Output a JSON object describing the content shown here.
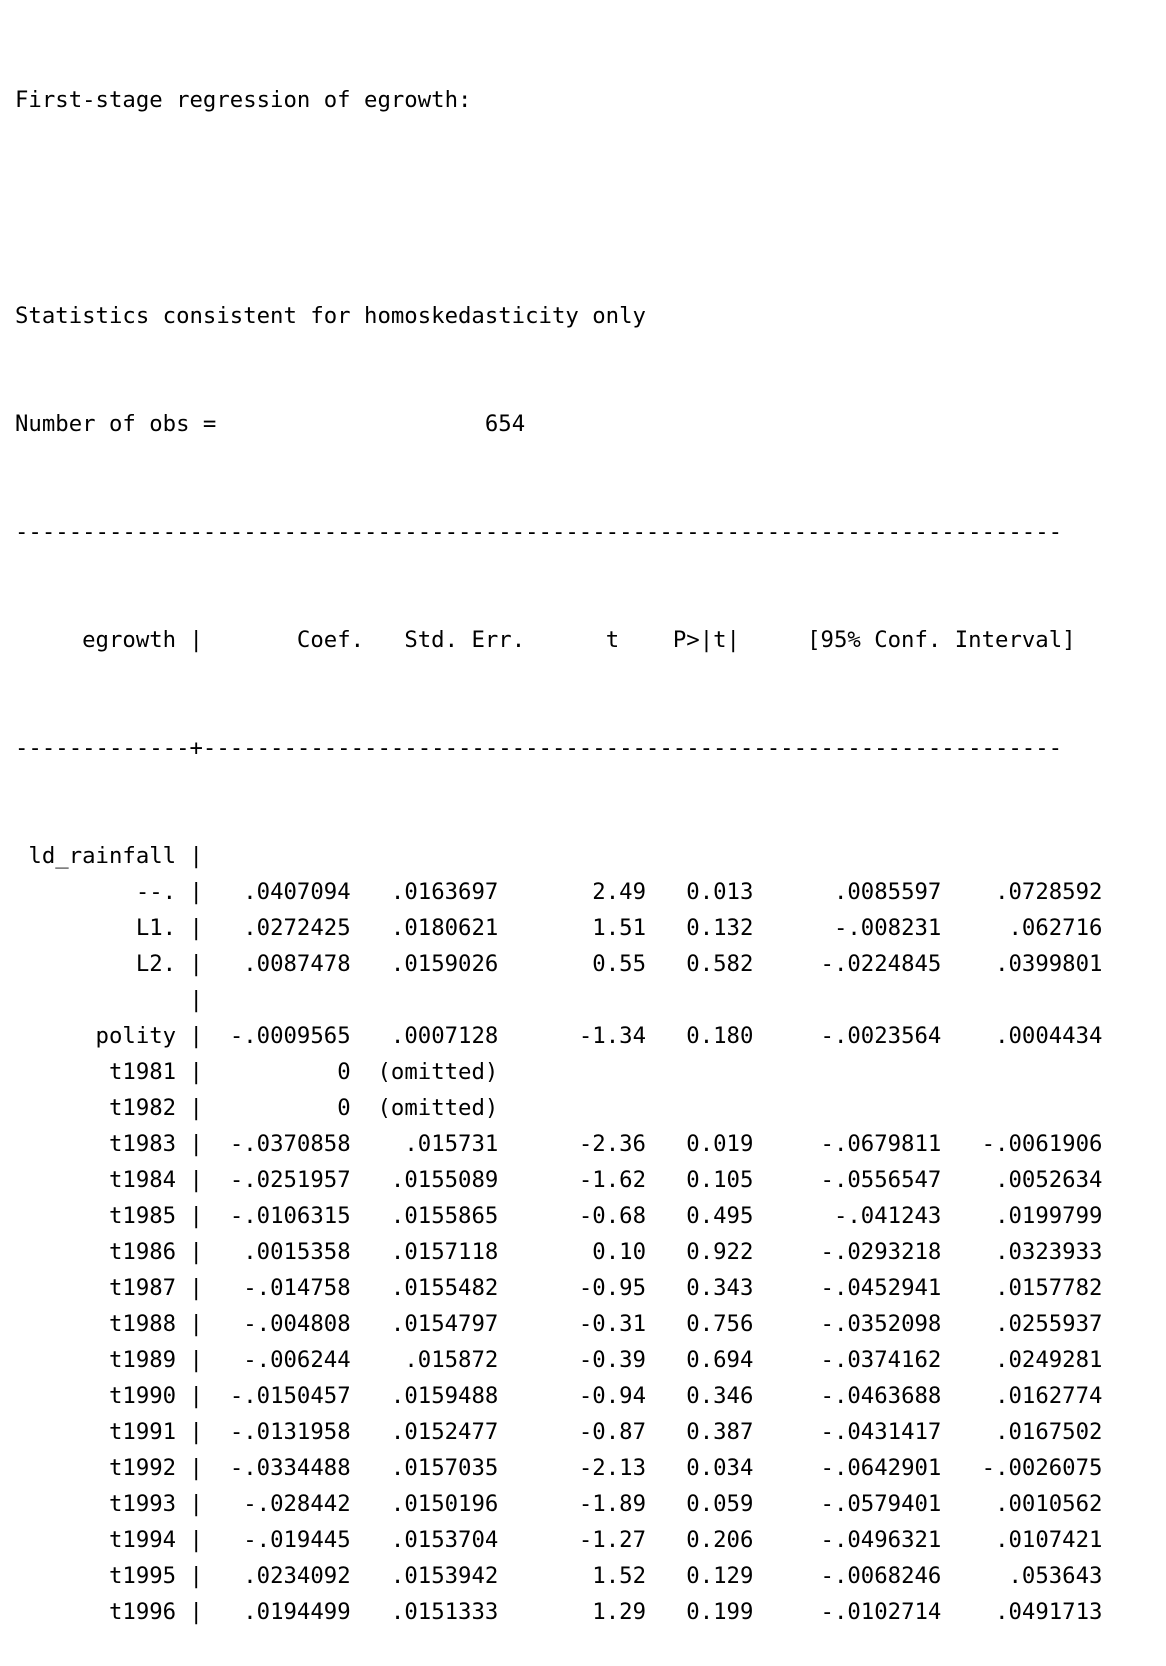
{
  "output": {
    "heading": "First-stage regression of egrowth:",
    "stats_note": "Statistics consistent for homoskedasticity only",
    "nobs_label": "Number of obs =",
    "nobs_value": "654",
    "table": {
      "depvar": "egrowth",
      "columns": [
        "Coef.",
        "Std. Err.",
        "t",
        "P>|t|",
        "[95% Conf. Interval]"
      ],
      "rows": [
        {
          "name": "ld_rainfall",
          "coef": "",
          "se": "",
          "t": "",
          "p": "",
          "lo": "",
          "hi": ""
        },
        {
          "name": "--.",
          "coef": ".0407094",
          "se": ".0163697",
          "t": "2.49",
          "p": "0.013",
          "lo": ".0085597",
          "hi": ".0728592"
        },
        {
          "name": "L1.",
          "coef": ".0272425",
          "se": ".0180621",
          "t": "1.51",
          "p": "0.132",
          "lo": "-.008231",
          "hi": ".062716"
        },
        {
          "name": "L2.",
          "coef": ".0087478",
          "se": ".0159026",
          "t": "0.55",
          "p": "0.582",
          "lo": "-.0224845",
          "hi": ".0399801"
        },
        {
          "name": "",
          "coef": "",
          "se": "",
          "t": "",
          "p": "",
          "lo": "",
          "hi": ""
        },
        {
          "name": "polity",
          "coef": "-.0009565",
          "se": ".0007128",
          "t": "-1.34",
          "p": "0.180",
          "lo": "-.0023564",
          "hi": ".0004434"
        },
        {
          "name": "t1981",
          "coef": "0",
          "se": "(omitted)",
          "t": "",
          "p": "",
          "lo": "",
          "hi": ""
        },
        {
          "name": "t1982",
          "coef": "0",
          "se": "(omitted)",
          "t": "",
          "p": "",
          "lo": "",
          "hi": ""
        },
        {
          "name": "t1983",
          "coef": "-.0370858",
          "se": ".015731",
          "t": "-2.36",
          "p": "0.019",
          "lo": "-.0679811",
          "hi": "-.0061906"
        },
        {
          "name": "t1984",
          "coef": "-.0251957",
          "se": ".0155089",
          "t": "-1.62",
          "p": "0.105",
          "lo": "-.0556547",
          "hi": ".0052634"
        },
        {
          "name": "t1985",
          "coef": "-.0106315",
          "se": ".0155865",
          "t": "-0.68",
          "p": "0.495",
          "lo": "-.041243",
          "hi": ".0199799"
        },
        {
          "name": "t1986",
          "coef": ".0015358",
          "se": ".0157118",
          "t": "0.10",
          "p": "0.922",
          "lo": "-.0293218",
          "hi": ".0323933"
        },
        {
          "name": "t1987",
          "coef": "-.014758",
          "se": ".0155482",
          "t": "-0.95",
          "p": "0.343",
          "lo": "-.0452941",
          "hi": ".0157782"
        },
        {
          "name": "t1988",
          "coef": "-.004808",
          "se": ".0154797",
          "t": "-0.31",
          "p": "0.756",
          "lo": "-.0352098",
          "hi": ".0255937"
        },
        {
          "name": "t1989",
          "coef": "-.006244",
          "se": ".015872",
          "t": "-0.39",
          "p": "0.694",
          "lo": "-.0374162",
          "hi": ".0249281"
        },
        {
          "name": "t1990",
          "coef": "-.0150457",
          "se": ".0159488",
          "t": "-0.94",
          "p": "0.346",
          "lo": "-.0463688",
          "hi": ".0162774"
        },
        {
          "name": "t1991",
          "coef": "-.0131958",
          "se": ".0152477",
          "t": "-0.87",
          "p": "0.387",
          "lo": "-.0431417",
          "hi": ".0167502"
        },
        {
          "name": "t1992",
          "coef": "-.0334488",
          "se": ".0157035",
          "t": "-2.13",
          "p": "0.034",
          "lo": "-.0642901",
          "hi": "-.0026075"
        },
        {
          "name": "t1993",
          "coef": "-.028442",
          "se": ".0150196",
          "t": "-1.89",
          "p": "0.059",
          "lo": "-.0579401",
          "hi": ".0010562"
        },
        {
          "name": "t1994",
          "coef": "-.019445",
          "se": ".0153704",
          "t": "-1.27",
          "p": "0.206",
          "lo": "-.0496321",
          "hi": ".0107421"
        },
        {
          "name": "t1995",
          "coef": ".0234092",
          "se": ".0153942",
          "t": "1.52",
          "p": "0.129",
          "lo": "-.0068246",
          "hi": ".053643"
        },
        {
          "name": "t1996",
          "coef": ".0194499",
          "se": ".0151333",
          "t": "1.29",
          "p": "0.199",
          "lo": "-.0102714",
          "hi": ".0491713"
        }
      ]
    }
  }
}
